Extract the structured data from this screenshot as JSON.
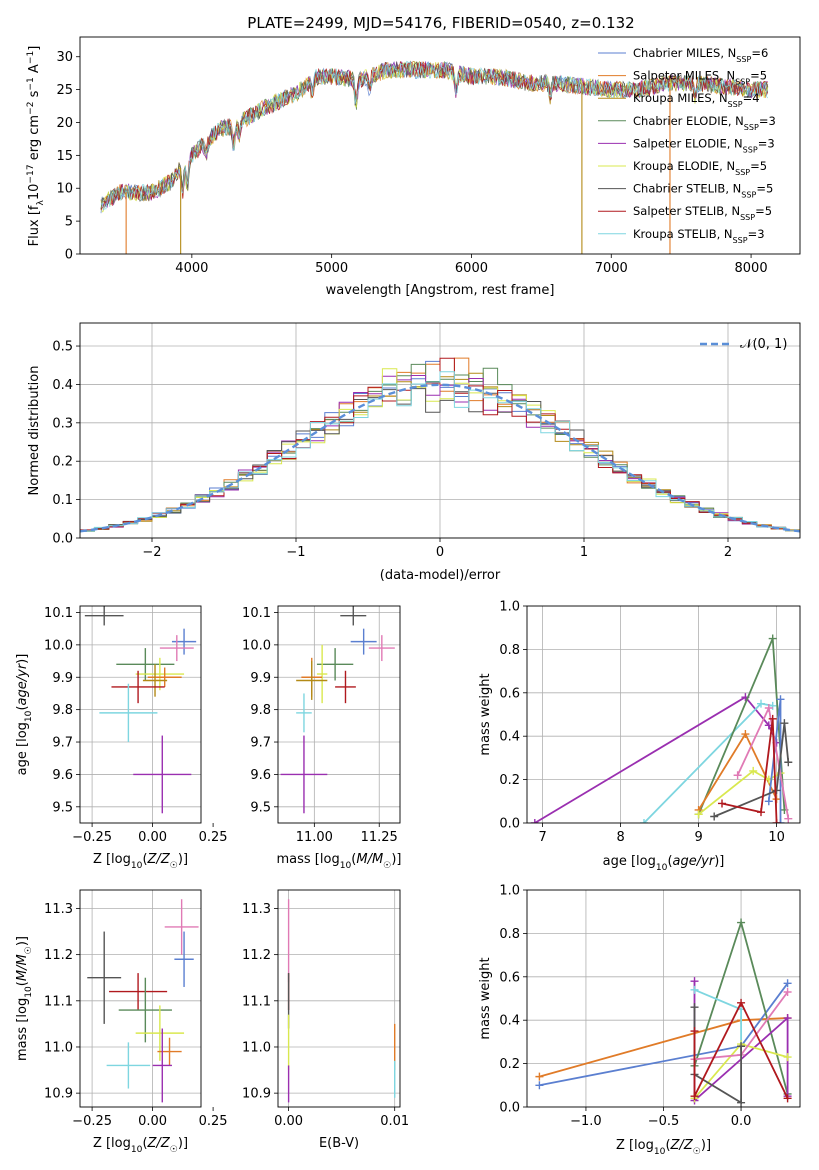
{
  "figure": {
    "title": "PLATE=2499, MJD=54176, FIBERID=0540, z=0.132"
  },
  "colors": {
    "Chabrier MILES": "#5b7fd0",
    "Salpeter MILES": "#e07b28",
    "Kroupa MILES": "#b38a17",
    "Chabrier ELODIE": "#5a8a5a",
    "Salpeter ELODIE": "#9a2fb0",
    "Kroupa ELODIE": "#d9e84f",
    "Chabrier STELIB": "#555555",
    "Salpeter STELIB": "#b0191e",
    "Kroupa STELIB": "#7ed6e0",
    "pink": "#e07ab5",
    "normal": "#5b8fd8",
    "grid": "#b0b0b0"
  },
  "chart_data": [
    {
      "id": "spectrum",
      "type": "line",
      "title": "PLATE=2499, MJD=54176, FIBERID=0540, z=0.132",
      "xlabel": "wavelength [Angstrom, rest frame]",
      "ylabel": "Flux [f_λ 10^-17 erg cm^-2 s^-1 A^-1]",
      "xlim": [
        3200,
        8350
      ],
      "ylim": [
        0,
        33
      ],
      "xticks": [
        "4000",
        "5000",
        "6000",
        "7000",
        "8000"
      ],
      "yticks": [
        "0",
        "5",
        "10",
        "15",
        "20",
        "25",
        "30"
      ],
      "grid": false,
      "legend_position": "upper-right",
      "x_range_data": [
        3350,
        8120
      ],
      "series": [
        {
          "name": "Chabrier MILES, N",
          "sub": "SSP",
          "suffix": "=6",
          "color_key": "Chabrier MILES"
        },
        {
          "name": "Salpeter MILES, N",
          "sub": "SSP",
          "suffix": "=5",
          "color_key": "Salpeter MILES"
        },
        {
          "name": "Kroupa MILES, N",
          "sub": "SSP",
          "suffix": "=4",
          "color_key": "Kroupa MILES"
        },
        {
          "name": "Chabrier ELODIE, N",
          "sub": "SSP",
          "suffix": "=3",
          "color_key": "Chabrier ELODIE"
        },
        {
          "name": "Salpeter ELODIE, N",
          "sub": "SSP",
          "suffix": "=3",
          "color_key": "Salpeter ELODIE"
        },
        {
          "name": "Kroupa ELODIE, N",
          "sub": "SSP",
          "suffix": "=5",
          "color_key": "Kroupa ELODIE"
        },
        {
          "name": "Chabrier STELIB, N",
          "sub": "SSP",
          "suffix": "=5",
          "color_key": "Chabrier STELIB"
        },
        {
          "name": "Salpeter STELIB, N",
          "sub": "SSP",
          "suffix": "=5",
          "color_key": "Salpeter STELIB"
        },
        {
          "name": "Kroupa STELIB, N",
          "sub": "SSP",
          "suffix": "=3",
          "color_key": "Kroupa STELIB"
        }
      ],
      "continuum": [
        [
          3350,
          7.5
        ],
        [
          3500,
          9.5
        ],
        [
          3700,
          9.2
        ],
        [
          3850,
          11
        ],
        [
          3950,
          14
        ],
        [
          4050,
          16
        ],
        [
          4200,
          19
        ],
        [
          4300,
          19.5
        ],
        [
          4500,
          22
        ],
        [
          4750,
          24.5
        ],
        [
          4900,
          27
        ],
        [
          5000,
          27
        ],
        [
          5200,
          26.5
        ],
        [
          5400,
          28
        ],
        [
          5600,
          28
        ],
        [
          5800,
          28
        ],
        [
          6000,
          27
        ],
        [
          6200,
          27
        ],
        [
          6400,
          26
        ],
        [
          6600,
          26
        ],
        [
          6800,
          25.5
        ],
        [
          7000,
          25
        ],
        [
          7200,
          25
        ],
        [
          7400,
          26
        ],
        [
          7600,
          26
        ],
        [
          7800,
          25.5
        ],
        [
          8000,
          25
        ],
        [
          8120,
          25
        ]
      ],
      "features": [
        [
          3934,
          -4
        ],
        [
          3968,
          -4
        ],
        [
          4102,
          -2
        ],
        [
          4300,
          -3
        ],
        [
          4340,
          -2
        ],
        [
          4861,
          -2
        ],
        [
          5175,
          -4
        ],
        [
          5270,
          -2
        ],
        [
          5890,
          -3
        ],
        [
          6563,
          -2
        ],
        [
          7600,
          -2
        ]
      ],
      "drops": [
        {
          "color_key": "Salpeter MILES",
          "x": 3530,
          "edge": "left"
        },
        {
          "color_key": "Kroupa MILES",
          "x": 3920,
          "edge": "left"
        },
        {
          "color_key": "Kroupa MILES",
          "x": 6790,
          "edge": "right"
        },
        {
          "color_key": "Salpeter MILES",
          "x": 7420,
          "edge": "right"
        }
      ]
    },
    {
      "id": "residuals",
      "type": "histogram",
      "xlabel": "(data-model)/error",
      "ylabel": "Normed distribution",
      "xlim": [
        -2.5,
        2.5
      ],
      "ylim": [
        0,
        0.56
      ],
      "xticks": [
        "−2",
        "−1",
        "0",
        "1",
        "2"
      ],
      "yticks": [
        "0.0",
        "0.1",
        "0.2",
        "0.3",
        "0.4",
        "0.5"
      ],
      "grid": true,
      "legend": [
        "𝒩(0, 1)"
      ],
      "legend_position": "upper-right",
      "bin_width": 0.1,
      "approx_peak": 0.45,
      "series_color_keys": [
        "Chabrier MILES",
        "Salpeter MILES",
        "Kroupa MILES",
        "Chabrier ELODIE",
        "Salpeter ELODIE",
        "Kroupa ELODIE",
        "Chabrier STELIB",
        "Salpeter STELIB",
        "Kroupa STELIB"
      ]
    },
    {
      "id": "age-vs-Z",
      "type": "scatter",
      "xlabel": "Z [log10(Z/Z☉)]",
      "ylabel": "age [log10(age/yr)]",
      "xlim": [
        -0.3,
        0.2
      ],
      "ylim": [
        9.45,
        10.12
      ],
      "xticks": [
        "−0.25",
        "0.00",
        "0.25"
      ],
      "yticks": [
        "9.5",
        "9.6",
        "9.7",
        "9.8",
        "9.9",
        "10.0",
        "10.1"
      ],
      "grid": true,
      "points": [
        {
          "c": "Chabrier STELIB",
          "x": -0.2,
          "y": 10.09,
          "xe": 0.08,
          "ye": 0.03
        },
        {
          "c": "Chabrier MILES",
          "x": 0.13,
          "y": 10.01,
          "xe": 0.05,
          "ye": 0.04
        },
        {
          "c": "pink",
          "x": 0.1,
          "y": 9.99,
          "xe": 0.07,
          "ye": 0.04
        },
        {
          "c": "Chabrier ELODIE",
          "x": -0.03,
          "y": 9.94,
          "xe": 0.12,
          "ye": 0.05
        },
        {
          "c": "Kroupa ELODIE",
          "x": 0.03,
          "y": 9.91,
          "xe": 0.1,
          "ye": 0.05
        },
        {
          "c": "Salpeter MILES",
          "x": 0.05,
          "y": 9.9,
          "xe": 0.07,
          "ye": 0.03
        },
        {
          "c": "Kroupa MILES",
          "x": 0.01,
          "y": 9.89,
          "xe": 0.05,
          "ye": 0.05
        },
        {
          "c": "Salpeter STELIB",
          "x": -0.06,
          "y": 9.87,
          "xe": 0.11,
          "ye": 0.05
        },
        {
          "c": "Kroupa STELIB",
          "x": -0.1,
          "y": 9.79,
          "xe": 0.12,
          "ye": 0.09
        },
        {
          "c": "Salpeter ELODIE",
          "x": 0.04,
          "y": 9.6,
          "xe": 0.12,
          "ye": 0.12
        }
      ]
    },
    {
      "id": "age-vs-mass",
      "type": "scatter",
      "xlabel": "mass [log10(M/M☉)]",
      "ylabel": "",
      "xlim": [
        10.86,
        11.33
      ],
      "ylim": [
        9.45,
        10.12
      ],
      "xticks": [
        "11.00",
        "11.25"
      ],
      "yticks": [
        "9.5",
        "9.6",
        "9.7",
        "9.8",
        "9.9",
        "10.0",
        "10.1"
      ],
      "grid": true,
      "points": [
        {
          "c": "Chabrier STELIB",
          "x": 11.15,
          "y": 10.09,
          "xe": 0.05,
          "ye": 0.03
        },
        {
          "c": "Chabrier MILES",
          "x": 11.19,
          "y": 10.01,
          "xe": 0.05,
          "ye": 0.04
        },
        {
          "c": "pink",
          "x": 11.26,
          "y": 9.99,
          "xe": 0.05,
          "ye": 0.04
        },
        {
          "c": "Chabrier ELODIE",
          "x": 11.08,
          "y": 9.94,
          "xe": 0.07,
          "ye": 0.05
        },
        {
          "c": "Kroupa ELODIE",
          "x": 11.03,
          "y": 9.91,
          "xe": 0.02,
          "ye": 0.09
        },
        {
          "c": "Salpeter MILES",
          "x": 10.99,
          "y": 9.9,
          "xe": 0.04,
          "ye": 0.06
        },
        {
          "c": "Kroupa MILES",
          "x": 10.99,
          "y": 9.89,
          "xe": 0.06,
          "ye": 0.06
        },
        {
          "c": "Salpeter STELIB",
          "x": 11.12,
          "y": 9.87,
          "xe": 0.04,
          "ye": 0.05
        },
        {
          "c": "Kroupa STELIB",
          "x": 10.96,
          "y": 9.79,
          "xe": 0.03,
          "ye": 0.06
        },
        {
          "c": "Salpeter ELODIE",
          "x": 10.96,
          "y": 9.6,
          "xe": 0.09,
          "ye": 0.12
        }
      ]
    },
    {
      "id": "massweight-vs-age",
      "type": "line",
      "xlabel": "age [log10(age/yr)]",
      "ylabel": "mass weight",
      "xlim": [
        6.8,
        10.3
      ],
      "ylim": [
        0,
        1
      ],
      "xticks": [
        "7",
        "8",
        "9",
        "10"
      ],
      "yticks": [
        "0.0",
        "0.2",
        "0.4",
        "0.6",
        "0.8",
        "1.0"
      ],
      "grid": true,
      "series": [
        {
          "c": "Salpeter ELODIE",
          "x": [
            6.9,
            9.6,
            9.9,
            10.0
          ],
          "y": [
            0.0,
            0.58,
            0.45,
            0.37
          ]
        },
        {
          "c": "Kroupa STELIB",
          "x": [
            8.3,
            9.8,
            9.95
          ],
          "y": [
            0.0,
            0.55,
            0.54
          ]
        },
        {
          "c": "Chabrier ELODIE",
          "x": [
            9.0,
            9.95,
            10.1
          ],
          "y": [
            0.04,
            0.85,
            0.06
          ]
        },
        {
          "c": "Salpeter MILES",
          "x": [
            9.0,
            9.6,
            10.0
          ],
          "y": [
            0.06,
            0.41,
            0.11
          ]
        },
        {
          "c": "Kroupa ELODIE",
          "x": [
            9.0,
            9.7,
            9.9,
            10.05
          ],
          "y": [
            0.04,
            0.24,
            0.2,
            0.23
          ]
        },
        {
          "c": "Chabrier MILES",
          "x": [
            9.9,
            10.05,
            10.05
          ],
          "y": [
            0.1,
            0.57,
            0.0
          ]
        },
        {
          "c": "pink",
          "x": [
            9.5,
            9.9,
            10.15
          ],
          "y": [
            0.22,
            0.53,
            0.02
          ]
        },
        {
          "c": "Chabrier STELIB",
          "x": [
            9.2,
            10.0,
            10.1,
            10.15
          ],
          "y": [
            0.03,
            0.15,
            0.46,
            0.28
          ]
        },
        {
          "c": "Salpeter STELIB",
          "x": [
            9.3,
            9.8,
            9.95,
            10.0
          ],
          "y": [
            0.09,
            0.05,
            0.48,
            0.0
          ]
        }
      ]
    },
    {
      "id": "mass-vs-Z",
      "type": "scatter",
      "xlabel": "Z [log10(Z/Z☉)]",
      "ylabel": "mass [log10(M/M☉)]",
      "xlim": [
        -0.3,
        0.2
      ],
      "ylim": [
        10.87,
        11.34
      ],
      "xticks": [
        "−0.25",
        "0.00",
        "0.25"
      ],
      "yticks": [
        "10.9",
        "11.0",
        "11.1",
        "11.2",
        "11.3"
      ],
      "grid": true,
      "points": [
        {
          "c": "pink",
          "x": 0.12,
          "y": 11.26,
          "xe": 0.07,
          "ye": 0.06
        },
        {
          "c": "Chabrier MILES",
          "x": 0.13,
          "y": 11.19,
          "xe": 0.04,
          "ye": 0.06
        },
        {
          "c": "Chabrier STELIB",
          "x": -0.2,
          "y": 11.15,
          "xe": 0.07,
          "ye": 0.1
        },
        {
          "c": "Salpeter STELIB",
          "x": -0.06,
          "y": 11.12,
          "xe": 0.12,
          "ye": 0.04
        },
        {
          "c": "Chabrier ELODIE",
          "x": -0.03,
          "y": 11.08,
          "xe": 0.11,
          "ye": 0.07
        },
        {
          "c": "Kroupa ELODIE",
          "x": 0.03,
          "y": 11.03,
          "xe": 0.1,
          "ye": 0.06
        },
        {
          "c": "Salpeter MILES",
          "x": 0.07,
          "y": 10.99,
          "xe": 0.05,
          "ye": 0.03
        },
        {
          "c": "Salpeter ELODIE",
          "x": 0.04,
          "y": 10.96,
          "xe": 0.04,
          "ye": 0.08
        },
        {
          "c": "Kroupa STELIB",
          "x": -0.1,
          "y": 10.96,
          "xe": 0.09,
          "ye": 0.05
        }
      ]
    },
    {
      "id": "mass-vs-EBV",
      "type": "scatter",
      "xlabel": "E(B-V)",
      "ylabel": "",
      "xlim": [
        -0.001,
        0.0105
      ],
      "ylim": [
        10.87,
        11.34
      ],
      "xticks": [
        "0.00",
        "0.01"
      ],
      "yticks": [
        "10.9",
        "11.0",
        "11.1",
        "11.2",
        "11.3"
      ],
      "grid": true,
      "points": [
        {
          "c": "pink",
          "x": 0.0,
          "y": 11.23,
          "xe": 0,
          "ye": 0.09
        },
        {
          "c": "Salpeter STELIB",
          "x": 0.0,
          "y": 11.12,
          "xe": 0,
          "ye": 0.04
        },
        {
          "c": "Chabrier STELIB",
          "x": 0.0,
          "y": 11.1,
          "xe": 0,
          "ye": 0.06
        },
        {
          "c": "Kroupa ELODIE",
          "x": 0.0,
          "y": 11.01,
          "xe": 0,
          "ye": 0.06
        },
        {
          "c": "Salpeter ELODIE",
          "x": 0.0,
          "y": 10.92,
          "xe": 0,
          "ye": 0.04
        },
        {
          "c": "Salpeter MILES",
          "x": 0.01,
          "y": 11.0,
          "xe": 0,
          "ye": 0.05
        },
        {
          "c": "Kroupa STELIB",
          "x": 0.01,
          "y": 10.93,
          "xe": 0,
          "ye": 0.04
        }
      ]
    },
    {
      "id": "massweight-vs-Z",
      "type": "line",
      "xlabel": "Z [log10(Z/Z☉)]",
      "ylabel": "mass weight",
      "xlim": [
        -1.38,
        0.38
      ],
      "ylim": [
        0,
        1
      ],
      "xticks": [
        "−1.0",
        "−0.5",
        "0.0"
      ],
      "yticks": [
        "0.0",
        "0.2",
        "0.4",
        "0.6",
        "0.8",
        "1.0"
      ],
      "grid": true,
      "series": [
        {
          "c": "Salpeter MILES",
          "x": [
            -1.3,
            0.0,
            0.3
          ],
          "y": [
            0.14,
            0.4,
            0.41
          ]
        },
        {
          "c": "Chabrier MILES",
          "x": [
            -1.3,
            0.0,
            0.3
          ],
          "y": [
            0.1,
            0.28,
            0.57
          ]
        },
        {
          "c": "Chabrier ELODIE",
          "x": [
            -0.3,
            0.0,
            0.3
          ],
          "y": [
            0.19,
            0.85,
            0.06
          ]
        },
        {
          "c": "Salpeter ELODIE",
          "x": [
            -0.3,
            -0.3,
            0.3,
            0.3
          ],
          "y": [
            0.58,
            0.03,
            0.41,
            0.05
          ]
        },
        {
          "c": "Kroupa STELIB",
          "x": [
            -0.3,
            0.0,
            0.0
          ],
          "y": [
            0.54,
            0.45,
            0.28
          ]
        },
        {
          "c": "Kroupa ELODIE",
          "x": [
            -0.3,
            0.0,
            0.3
          ],
          "y": [
            0.04,
            0.29,
            0.23
          ]
        },
        {
          "c": "pink",
          "x": [
            -0.3,
            0.0,
            0.3
          ],
          "y": [
            0.22,
            0.24,
            0.53
          ]
        },
        {
          "c": "Chabrier STELIB",
          "x": [
            -0.3,
            -0.3,
            0.0,
            0.0
          ],
          "y": [
            0.46,
            0.15,
            0.02,
            0.28
          ]
        },
        {
          "c": "Salpeter STELIB",
          "x": [
            -0.3,
            -0.3,
            0.0,
            0.3
          ],
          "y": [
            0.35,
            0.05,
            0.48,
            0.04
          ]
        }
      ]
    }
  ]
}
